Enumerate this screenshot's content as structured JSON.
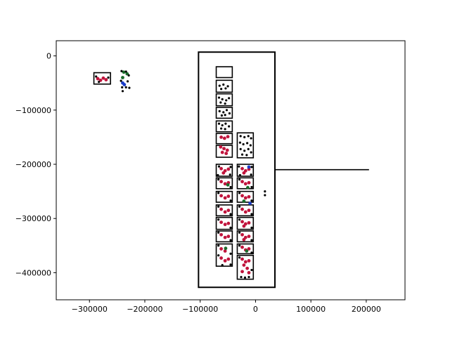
{
  "chart_data": {
    "type": "scatter",
    "title": "",
    "xlabel": "",
    "ylabel": "",
    "xlim": [
      -360000,
      270000
    ],
    "ylim": [
      -450000,
      28000
    ],
    "grid": false,
    "x_ticks": [
      {
        "value": -300000,
        "label": "−300000"
      },
      {
        "value": -200000,
        "label": "−200000"
      },
      {
        "value": -100000,
        "label": "−100000"
      },
      {
        "value": 0,
        "label": "0"
      },
      {
        "value": 100000,
        "label": "100000"
      },
      {
        "value": 200000,
        "label": "200000"
      }
    ],
    "y_ticks": [
      {
        "value": 0,
        "label": "0"
      },
      {
        "value": -100000,
        "label": "−100000"
      },
      {
        "value": -200000,
        "label": "−200000"
      },
      {
        "value": -300000,
        "label": "−300000"
      },
      {
        "value": -400000,
        "label": "−400000"
      }
    ],
    "colors": {
      "outline": "#000000",
      "crimson": "#c0143c",
      "green": "#1a6b2a",
      "blue": "#1a3cc8",
      "black": "#000000"
    },
    "line": {
      "x": [
        35000,
        205000
      ],
      "y": [
        -210000,
        -210000
      ]
    },
    "outer_box": {
      "x0": -103000,
      "x1": 35000,
      "y0": -427000,
      "y1": 7000
    },
    "boxes": [
      {
        "x0": -292000,
        "x1": -262000,
        "y0": -52000,
        "y1": -31000
      },
      {
        "x0": -71000,
        "x1": -42000,
        "y0": -40000,
        "y1": -20000
      },
      {
        "x0": -71000,
        "x1": -42000,
        "y0": -67000,
        "y1": -45000
      },
      {
        "x0": -71000,
        "x1": -42000,
        "y0": -92000,
        "y1": -70000
      },
      {
        "x0": -71000,
        "x1": -42000,
        "y0": -115000,
        "y1": -95000
      },
      {
        "x0": -71000,
        "x1": -42000,
        "y0": -140000,
        "y1": -120000
      },
      {
        "x0": -71000,
        "x1": -42000,
        "y0": -162000,
        "y1": -143000
      },
      {
        "x0": -71000,
        "x1": -42000,
        "y0": -187000,
        "y1": -165000
      },
      {
        "x0": -33000,
        "x1": -4000,
        "y0": -188000,
        "y1": -142000
      },
      {
        "x0": -71000,
        "x1": -42000,
        "y0": -222000,
        "y1": -200000
      },
      {
        "x0": -71000,
        "x1": -42000,
        "y0": -245000,
        "y1": -225000
      },
      {
        "x0": -71000,
        "x1": -42000,
        "y0": -270000,
        "y1": -250000
      },
      {
        "x0": -71000,
        "x1": -42000,
        "y0": -295000,
        "y1": -275000
      },
      {
        "x0": -71000,
        "x1": -42000,
        "y0": -320000,
        "y1": -298000
      },
      {
        "x0": -71000,
        "x1": -42000,
        "y0": -343000,
        "y1": -323000
      },
      {
        "x0": -71000,
        "x1": -42000,
        "y0": -388000,
        "y1": -347000
      },
      {
        "x0": -33000,
        "x1": -4000,
        "y0": -222000,
        "y1": -200000
      },
      {
        "x0": -33000,
        "x1": -4000,
        "y0": -245000,
        "y1": -225000
      },
      {
        "x0": -33000,
        "x1": -4000,
        "y0": -270000,
        "y1": -250000
      },
      {
        "x0": -33000,
        "x1": -4000,
        "y0": -295000,
        "y1": -275000
      },
      {
        "x0": -33000,
        "x1": -4000,
        "y0": -320000,
        "y1": -298000
      },
      {
        "x0": -33000,
        "x1": -4000,
        "y0": -343000,
        "y1": -323000
      },
      {
        "x0": -33000,
        "x1": -4000,
        "y0": -365000,
        "y1": -347000
      },
      {
        "x0": -33000,
        "x1": -4000,
        "y0": -412000,
        "y1": -368000
      }
    ],
    "series": [
      {
        "color": "crimson",
        "points": [
          [
            -285000,
            -42000
          ],
          [
            -280000,
            -45000
          ],
          [
            -275000,
            -41000
          ],
          [
            -270000,
            -44000
          ],
          [
            -62000,
            -150000
          ],
          [
            -56000,
            -152000
          ],
          [
            -50000,
            -149000
          ],
          [
            -63000,
            -168000
          ],
          [
            -57000,
            -171000
          ],
          [
            -51000,
            -174000
          ],
          [
            -60000,
            -178000
          ],
          [
            -53000,
            -180000
          ],
          [
            -62000,
            -208000
          ],
          [
            -55000,
            -212000
          ],
          [
            -49000,
            -209000
          ],
          [
            -58000,
            -216000
          ],
          [
            -24000,
            -208000
          ],
          [
            -18000,
            -212000
          ],
          [
            -12000,
            -209000
          ],
          [
            -21000,
            -216000
          ],
          [
            -62000,
            -232000
          ],
          [
            -55000,
            -236000
          ],
          [
            -49000,
            -234000
          ],
          [
            -24000,
            -232000
          ],
          [
            -18000,
            -236000
          ],
          [
            -12000,
            -234000
          ],
          [
            -62000,
            -258000
          ],
          [
            -55000,
            -262000
          ],
          [
            -49000,
            -259000
          ],
          [
            -24000,
            -258000
          ],
          [
            -18000,
            -262000
          ],
          [
            -12000,
            -260000
          ],
          [
            -62000,
            -283000
          ],
          [
            -55000,
            -288000
          ],
          [
            -49000,
            -285000
          ],
          [
            -24000,
            -283000
          ],
          [
            -18000,
            -288000
          ],
          [
            -12000,
            -285000
          ],
          [
            -62000,
            -307000
          ],
          [
            -55000,
            -311000
          ],
          [
            -49000,
            -309000
          ],
          [
            -24000,
            -306000
          ],
          [
            -18000,
            -310000
          ],
          [
            -12000,
            -308000
          ],
          [
            -21000,
            -314000
          ],
          [
            -62000,
            -330000
          ],
          [
            -55000,
            -335000
          ],
          [
            -49000,
            -333000
          ],
          [
            -24000,
            -330000
          ],
          [
            -18000,
            -335000
          ],
          [
            -12000,
            -333000
          ],
          [
            -21000,
            -339000
          ],
          [
            -62000,
            -356000
          ],
          [
            -55000,
            -360000
          ],
          [
            -24000,
            -353000
          ],
          [
            -18000,
            -358000
          ],
          [
            -12000,
            -356000
          ],
          [
            -62000,
            -373000
          ],
          [
            -55000,
            -378000
          ],
          [
            -49000,
            -375000
          ],
          [
            -24000,
            -375000
          ],
          [
            -18000,
            -380000
          ],
          [
            -12000,
            -378000
          ],
          [
            -21000,
            -386000
          ],
          [
            -15000,
            -392000
          ],
          [
            -24000,
            -398000
          ],
          [
            -12000,
            -400000
          ]
        ]
      },
      {
        "color": "green",
        "points": [
          [
            -238000,
            -30000
          ],
          [
            -232000,
            -33000
          ],
          [
            -240000,
            -40000
          ],
          [
            -50000,
            -238000
          ],
          [
            -14000,
            -243000
          ],
          [
            -21000,
            -268000
          ],
          [
            -54000,
            -355000
          ],
          [
            -16000,
            -360000
          ]
        ]
      },
      {
        "color": "blue",
        "points": [
          [
            -240000,
            -50000
          ],
          [
            -237000,
            -53000
          ],
          [
            -12000,
            -205000
          ],
          [
            -10000,
            -272000
          ]
        ]
      },
      {
        "color": "black",
        "points": [
          [
            -288000,
            -38000
          ],
          [
            -266000,
            -40000
          ],
          [
            -283000,
            -48000
          ],
          [
            -242000,
            -28000
          ],
          [
            -234000,
            -29000
          ],
          [
            -229000,
            -36000
          ],
          [
            -243000,
            -46000
          ],
          [
            -231000,
            -47000
          ],
          [
            -241000,
            -58000
          ],
          [
            -234000,
            -58000
          ],
          [
            -228000,
            -59000
          ],
          [
            -240000,
            -65000
          ],
          [
            -65000,
            -55000
          ],
          [
            -58000,
            -53000
          ],
          [
            -50000,
            -56000
          ],
          [
            -62000,
            -61000
          ],
          [
            -54000,
            -60000
          ],
          [
            -66000,
            -77000
          ],
          [
            -60000,
            -80000
          ],
          [
            -53000,
            -82000
          ],
          [
            -48000,
            -78000
          ],
          [
            -63000,
            -86000
          ],
          [
            -55000,
            -88000
          ],
          [
            -65000,
            -102000
          ],
          [
            -58000,
            -104000
          ],
          [
            -52000,
            -100000
          ],
          [
            -47000,
            -106000
          ],
          [
            -61000,
            -110000
          ],
          [
            -55000,
            -109000
          ],
          [
            -66000,
            -125000
          ],
          [
            -60000,
            -128000
          ],
          [
            -54000,
            -125000
          ],
          [
            -48000,
            -130000
          ],
          [
            -62000,
            -134000
          ],
          [
            -55000,
            -135000
          ],
          [
            -27000,
            -148000
          ],
          [
            -20000,
            -150000
          ],
          [
            -13000,
            -148000
          ],
          [
            -8000,
            -152000
          ],
          [
            -28000,
            -160000
          ],
          [
            -22000,
            -163000
          ],
          [
            -15000,
            -161000
          ],
          [
            -9000,
            -165000
          ],
          [
            -27000,
            -172000
          ],
          [
            -20000,
            -175000
          ],
          [
            -13000,
            -172000
          ],
          [
            -8000,
            -178000
          ],
          [
            -24000,
            -182000
          ],
          [
            -16000,
            -183000
          ],
          [
            -66000,
            -204000
          ],
          [
            -45000,
            -205000
          ],
          [
            -68000,
            -220000
          ],
          [
            -46000,
            -219000
          ],
          [
            -30000,
            -204000
          ],
          [
            -7000,
            -205000
          ],
          [
            -28000,
            -220000
          ],
          [
            -8000,
            -219000
          ],
          [
            -67000,
            -228000
          ],
          [
            -45000,
            -242000
          ],
          [
            -29000,
            -228000
          ],
          [
            -7000,
            -242000
          ],
          [
            -67000,
            -253000
          ],
          [
            -45000,
            -267000
          ],
          [
            -29000,
            -253000
          ],
          [
            -7000,
            -267000
          ],
          [
            -67000,
            -278000
          ],
          [
            -45000,
            -292000
          ],
          [
            -29000,
            -278000
          ],
          [
            -7000,
            -292000
          ],
          [
            -67000,
            -302000
          ],
          [
            -45000,
            -317000
          ],
          [
            -29000,
            -302000
          ],
          [
            -7000,
            -317000
          ],
          [
            -67000,
            -326000
          ],
          [
            -45000,
            -340000
          ],
          [
            -29000,
            -326000
          ],
          [
            -7000,
            -340000
          ],
          [
            -67000,
            -350000
          ],
          [
            -45000,
            -365000
          ],
          [
            -29000,
            -350000
          ],
          [
            -7000,
            -363000
          ],
          [
            -67000,
            -368000
          ],
          [
            -45000,
            -385000
          ],
          [
            -60000,
            -386000
          ],
          [
            -29000,
            -372000
          ],
          [
            -7000,
            -395000
          ],
          [
            -26000,
            -408000
          ],
          [
            -19000,
            -409000
          ],
          [
            -12000,
            -408000
          ],
          [
            17000,
            -250000
          ],
          [
            17000,
            -257000
          ]
        ]
      }
    ]
  }
}
